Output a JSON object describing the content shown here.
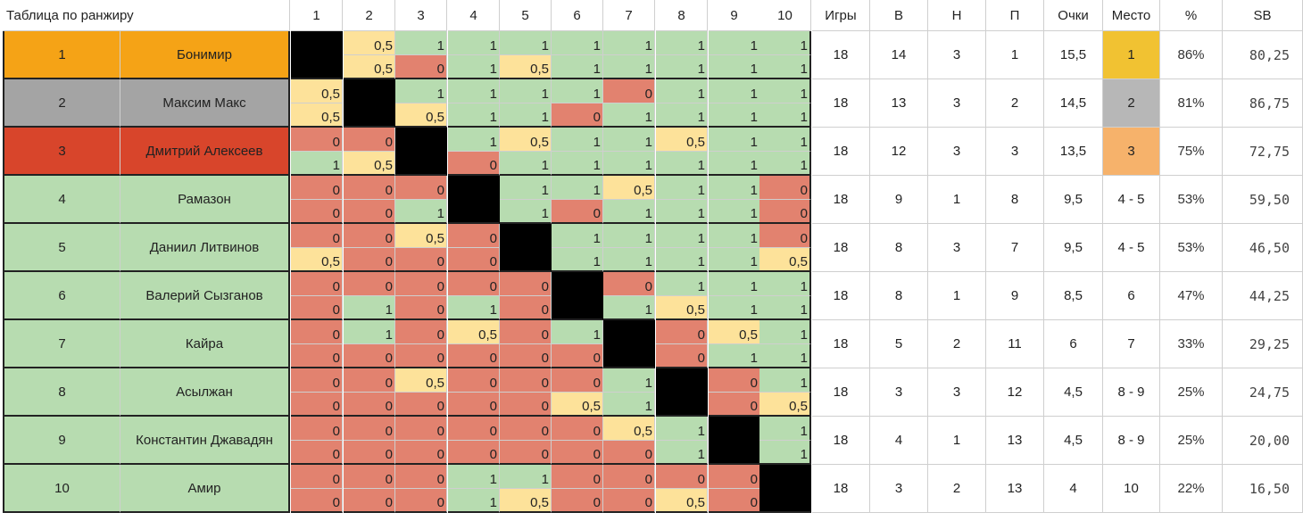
{
  "title": "Таблица по ранжиру",
  "headers": {
    "rounds": [
      "1",
      "2",
      "3",
      "4",
      "5",
      "6",
      "7",
      "8",
      "9",
      "10"
    ],
    "stats": [
      "Игры",
      "В",
      "Н",
      "П",
      "Очки",
      "Место",
      "%",
      "SB"
    ]
  },
  "colors": {
    "win": "#b7dcb0",
    "loss": "#e2826f",
    "draw": "#fde29a",
    "self": "#000000",
    "place1": "#f5a316",
    "place2": "#a4a4a4",
    "place3": "#d8452b",
    "other": "#b7dcb0",
    "medal1": "#f1c232",
    "medal2": "#b7b7b7",
    "medal3": "#f6b26b"
  },
  "players": [
    {
      "rank": "1",
      "name": "Бонимир",
      "g1": [
        "X",
        "0,5",
        "1",
        "1",
        "1",
        "1",
        "1",
        "1",
        "1",
        "1"
      ],
      "g2": [
        "X",
        "0,5",
        "0",
        "1",
        "0,5",
        "1",
        "1",
        "1",
        "1",
        "1"
      ],
      "games": "18",
      "w": "14",
      "d": "3",
      "l": "1",
      "points": "15,5",
      "place": "1",
      "pct": "86%",
      "sb": "80,25"
    },
    {
      "rank": "2",
      "name": "Максим Макс",
      "g1": [
        "0,5",
        "X",
        "1",
        "1",
        "1",
        "1",
        "0",
        "1",
        "1",
        "1"
      ],
      "g2": [
        "0,5",
        "X",
        "0,5",
        "1",
        "1",
        "0",
        "1",
        "1",
        "1",
        "1"
      ],
      "games": "18",
      "w": "13",
      "d": "3",
      "l": "2",
      "points": "14,5",
      "place": "2",
      "pct": "81%",
      "sb": "86,75"
    },
    {
      "rank": "3",
      "name": "Дмитрий Алексеев",
      "g1": [
        "0",
        "0",
        "X",
        "1",
        "0,5",
        "1",
        "1",
        "0,5",
        "1",
        "1"
      ],
      "g2": [
        "1",
        "0,5",
        "X",
        "0",
        "1",
        "1",
        "1",
        "1",
        "1",
        "1"
      ],
      "games": "18",
      "w": "12",
      "d": "3",
      "l": "3",
      "points": "13,5",
      "place": "3",
      "pct": "75%",
      "sb": "72,75"
    },
    {
      "rank": "4",
      "name": "Рамазон",
      "g1": [
        "0",
        "0",
        "0",
        "X",
        "1",
        "1",
        "0,5",
        "1",
        "1",
        "0"
      ],
      "g2": [
        "0",
        "0",
        "1",
        "X",
        "1",
        "0",
        "1",
        "1",
        "1",
        "0"
      ],
      "games": "18",
      "w": "9",
      "d": "1",
      "l": "8",
      "points": "9,5",
      "place": "4 - 5",
      "pct": "53%",
      "sb": "59,50"
    },
    {
      "rank": "5",
      "name": "Даниил Литвинов",
      "g1": [
        "0",
        "0",
        "0,5",
        "0",
        "X",
        "1",
        "1",
        "1",
        "1",
        "0"
      ],
      "g2": [
        "0,5",
        "0",
        "0",
        "0",
        "X",
        "1",
        "1",
        "1",
        "1",
        "0,5"
      ],
      "games": "18",
      "w": "8",
      "d": "3",
      "l": "7",
      "points": "9,5",
      "place": "4 - 5",
      "pct": "53%",
      "sb": "46,50"
    },
    {
      "rank": "6",
      "name": "Валерий Сызганов",
      "g1": [
        "0",
        "0",
        "0",
        "0",
        "0",
        "X",
        "0",
        "1",
        "1",
        "1"
      ],
      "g2": [
        "0",
        "1",
        "0",
        "1",
        "0",
        "X",
        "1",
        "0,5",
        "1",
        "1"
      ],
      "games": "18",
      "w": "8",
      "d": "1",
      "l": "9",
      "points": "8,5",
      "place": "6",
      "pct": "47%",
      "sb": "44,25"
    },
    {
      "rank": "7",
      "name": "Кайра",
      "g1": [
        "0",
        "1",
        "0",
        "0,5",
        "0",
        "1",
        "X",
        "0",
        "0,5",
        "1"
      ],
      "g2": [
        "0",
        "0",
        "0",
        "0",
        "0",
        "0",
        "X",
        "0",
        "1",
        "1"
      ],
      "games": "18",
      "w": "5",
      "d": "2",
      "l": "11",
      "points": "6",
      "place": "7",
      "pct": "33%",
      "sb": "29,25"
    },
    {
      "rank": "8",
      "name": "Асылжан",
      "g1": [
        "0",
        "0",
        "0,5",
        "0",
        "0",
        "0",
        "1",
        "X",
        "0",
        "1"
      ],
      "g2": [
        "0",
        "0",
        "0",
        "0",
        "0",
        "0,5",
        "1",
        "X",
        "0",
        "0,5"
      ],
      "games": "18",
      "w": "3",
      "d": "3",
      "l": "12",
      "points": "4,5",
      "place": "8 - 9",
      "pct": "25%",
      "sb": "24,75"
    },
    {
      "rank": "9",
      "name": "Константин Джавадян",
      "g1": [
        "0",
        "0",
        "0",
        "0",
        "0",
        "0",
        "0,5",
        "1",
        "X",
        "1"
      ],
      "g2": [
        "0",
        "0",
        "0",
        "0",
        "0",
        "0",
        "0",
        "1",
        "X",
        "1"
      ],
      "games": "18",
      "w": "4",
      "d": "1",
      "l": "13",
      "points": "4,5",
      "place": "8 - 9",
      "pct": "25%",
      "sb": "20,00"
    },
    {
      "rank": "10",
      "name": "Амир",
      "g1": [
        "0",
        "0",
        "0",
        "1",
        "1",
        "0",
        "0",
        "0",
        "0",
        "X"
      ],
      "g2": [
        "0",
        "0",
        "0",
        "1",
        "0,5",
        "0",
        "0",
        "0,5",
        "0",
        "X"
      ],
      "games": "18",
      "w": "3",
      "d": "2",
      "l": "13",
      "points": "4",
      "place": "10",
      "pct": "22%",
      "sb": "16,50"
    }
  ]
}
